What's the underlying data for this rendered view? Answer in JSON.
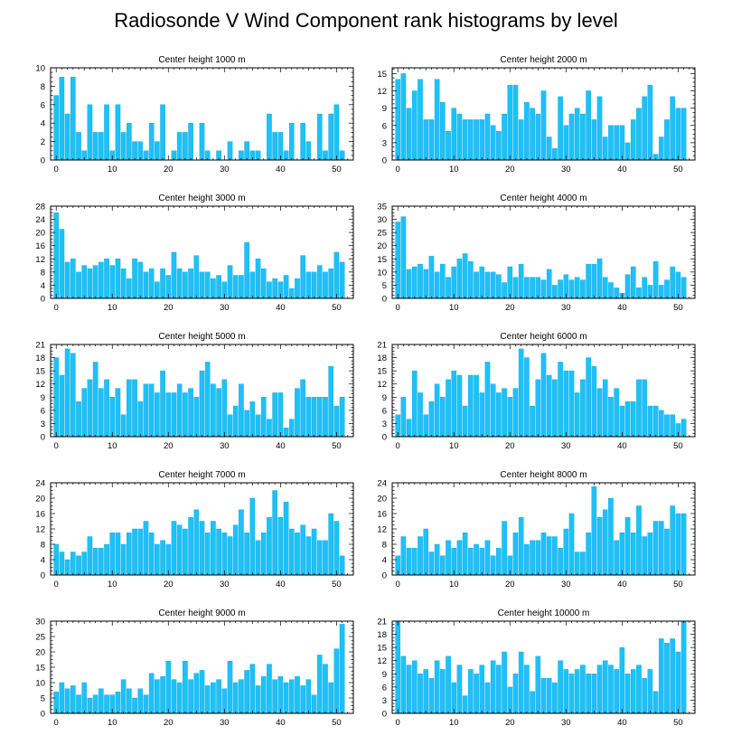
{
  "title": "Radiosonde V Wind Component rank histograms by level",
  "colors": {
    "bar": "#1ec1f7",
    "bar_edge": "#0aa6dc",
    "axis": "#000000"
  },
  "chart_data": [
    {
      "type": "bar",
      "title": "Center height 1000 m",
      "xlim": [
        -1,
        53
      ],
      "ylim": [
        0,
        10
      ],
      "xticks": [
        0,
        10,
        20,
        30,
        40,
        50
      ],
      "yticks": [
        0,
        2,
        4,
        6,
        8,
        10
      ],
      "values": [
        7,
        9,
        5,
        9,
        3,
        1,
        6,
        3,
        3,
        6,
        1,
        6,
        3,
        4,
        2,
        2,
        1,
        4,
        2,
        6,
        0,
        1,
        3,
        3,
        4,
        0,
        4,
        1,
        0,
        1,
        0,
        2,
        0,
        1,
        2,
        1,
        1,
        0,
        5,
        3,
        3,
        1,
        4,
        0,
        4,
        2,
        0,
        5,
        1,
        5,
        6,
        1
      ]
    },
    {
      "type": "bar",
      "title": "Center height 2000 m",
      "xlim": [
        -1,
        53
      ],
      "ylim": [
        0,
        16
      ],
      "xticks": [
        0,
        10,
        20,
        30,
        40,
        50
      ],
      "yticks": [
        0,
        3,
        6,
        9,
        12,
        15
      ],
      "values": [
        14,
        15,
        9,
        12,
        14,
        7,
        7,
        14,
        10,
        5,
        9,
        8,
        7,
        7,
        7,
        7,
        8,
        6,
        5,
        8,
        13,
        13,
        7,
        10,
        9,
        8,
        12,
        4,
        2,
        11,
        6,
        8,
        9,
        8,
        12,
        7,
        11,
        4,
        6,
        6,
        6,
        3,
        7,
        9,
        11,
        13,
        1,
        4,
        7,
        11,
        9,
        9
      ]
    },
    {
      "type": "bar",
      "title": "Center height 3000 m",
      "xlim": [
        -1,
        53
      ],
      "ylim": [
        0,
        28
      ],
      "xticks": [
        0,
        10,
        20,
        30,
        40,
        50
      ],
      "yticks": [
        0,
        4,
        8,
        12,
        16,
        20,
        24,
        28
      ],
      "values": [
        26,
        21,
        11,
        12,
        8,
        10,
        9,
        10,
        11,
        12,
        10,
        12,
        9,
        6,
        12,
        11,
        8,
        9,
        5,
        9,
        7,
        14,
        9,
        8,
        9,
        13,
        8,
        8,
        6,
        7,
        5,
        10,
        7,
        7,
        17,
        8,
        12,
        9,
        5,
        6,
        5,
        7,
        3,
        6,
        13,
        8,
        8,
        10,
        8,
        9,
        14,
        11
      ]
    },
    {
      "type": "bar",
      "title": "Center height 4000 m",
      "xlim": [
        -1,
        53
      ],
      "ylim": [
        0,
        35
      ],
      "xticks": [
        0,
        10,
        20,
        30,
        40,
        50
      ],
      "yticks": [
        0,
        5,
        10,
        15,
        20,
        25,
        30,
        35
      ],
      "values": [
        29,
        31,
        11,
        12,
        13,
        11,
        16,
        10,
        13,
        8,
        12,
        15,
        17,
        14,
        10,
        12,
        10,
        10,
        9,
        6,
        12,
        8,
        13,
        8,
        8,
        8,
        7,
        11,
        5,
        7,
        9,
        7,
        8,
        7,
        13,
        13,
        15,
        8,
        6,
        4,
        2,
        9,
        12,
        4,
        8,
        5,
        14,
        5,
        7,
        12,
        10,
        8
      ]
    },
    {
      "type": "bar",
      "title": "Center height 5000 m",
      "xlim": [
        -1,
        53
      ],
      "ylim": [
        0,
        21
      ],
      "xticks": [
        0,
        10,
        20,
        30,
        40,
        50
      ],
      "yticks": [
        0,
        3,
        6,
        9,
        12,
        15,
        18,
        21
      ],
      "values": [
        18,
        14,
        20,
        19,
        8,
        11,
        13,
        17,
        11,
        13,
        9,
        11,
        5,
        13,
        13,
        8,
        12,
        12,
        10,
        15,
        10,
        10,
        12,
        10,
        11,
        9,
        15,
        17,
        12,
        11,
        13,
        5,
        7,
        12,
        6,
        8,
        5,
        9,
        4,
        10,
        10,
        2,
        4,
        11,
        13,
        9,
        9,
        9,
        9,
        16,
        7,
        9
      ]
    },
    {
      "type": "bar",
      "title": "Center height 6000 m",
      "xlim": [
        -1,
        53
      ],
      "ylim": [
        0,
        21
      ],
      "xticks": [
        0,
        10,
        20,
        30,
        40,
        50
      ],
      "yticks": [
        0,
        3,
        6,
        9,
        12,
        15,
        18,
        21
      ],
      "values": [
        5,
        9,
        4,
        15,
        10,
        5,
        8,
        12,
        9,
        13,
        15,
        14,
        7,
        14,
        14,
        10,
        17,
        12,
        10,
        11,
        9,
        11,
        20,
        18,
        7,
        13,
        19,
        14,
        13,
        17,
        15,
        15,
        10,
        13,
        18,
        16,
        11,
        13,
        9,
        11,
        7,
        8,
        8,
        13,
        13,
        7,
        7,
        6,
        5,
        5,
        3,
        4
      ]
    },
    {
      "type": "bar",
      "title": "Center height 7000 m",
      "xlim": [
        -1,
        53
      ],
      "ylim": [
        0,
        24
      ],
      "xticks": [
        0,
        10,
        20,
        30,
        40,
        50
      ],
      "yticks": [
        0,
        4,
        8,
        12,
        16,
        20,
        24
      ],
      "values": [
        8,
        6,
        4,
        6,
        5,
        6,
        10,
        7,
        7,
        8,
        11,
        11,
        8,
        11,
        12,
        12,
        14,
        11,
        8,
        9,
        8,
        14,
        13,
        12,
        15,
        17,
        14,
        11,
        14,
        12,
        11,
        10,
        13,
        17,
        11,
        20,
        9,
        11,
        15,
        22,
        15,
        19,
        12,
        11,
        13,
        10,
        12,
        9,
        9,
        16,
        14,
        5
      ]
    },
    {
      "type": "bar",
      "title": "Center height 8000 m",
      "xlim": [
        -1,
        53
      ],
      "ylim": [
        0,
        24
      ],
      "xticks": [
        0,
        10,
        20,
        30,
        40,
        50
      ],
      "yticks": [
        0,
        4,
        8,
        12,
        16,
        20,
        24
      ],
      "values": [
        5,
        10,
        7,
        7,
        10,
        12,
        6,
        8,
        5,
        9,
        7,
        9,
        11,
        7,
        8,
        7,
        9,
        5,
        7,
        14,
        5,
        11,
        15,
        8,
        9,
        9,
        11,
        10,
        10,
        7,
        12,
        16,
        6,
        6,
        11,
        23,
        15,
        17,
        20,
        9,
        11,
        15,
        11,
        18,
        10,
        11,
        14,
        14,
        12,
        18,
        16,
        16
      ]
    },
    {
      "type": "bar",
      "title": "Center height 9000 m",
      "xlim": [
        -1,
        53
      ],
      "ylim": [
        0,
        30
      ],
      "xticks": [
        0,
        10,
        20,
        30,
        40,
        50
      ],
      "yticks": [
        0,
        5,
        10,
        15,
        20,
        25,
        30
      ],
      "values": [
        7,
        10,
        8,
        9,
        6,
        10,
        5,
        6,
        8,
        6,
        6,
        7,
        11,
        8,
        5,
        8,
        6,
        13,
        11,
        12,
        17,
        11,
        10,
        17,
        11,
        13,
        14,
        9,
        10,
        11,
        8,
        17,
        10,
        11,
        14,
        16,
        9,
        12,
        16,
        11,
        12,
        10,
        11,
        12,
        9,
        11,
        6,
        19,
        16,
        10,
        21,
        29
      ]
    },
    {
      "type": "bar",
      "title": "Center height 10000 m",
      "xlim": [
        -1,
        53
      ],
      "ylim": [
        0,
        21
      ],
      "xticks": [
        0,
        10,
        20,
        30,
        40,
        50
      ],
      "yticks": [
        0,
        3,
        6,
        9,
        12,
        15,
        18,
        21
      ],
      "values": [
        21,
        13,
        11,
        12,
        9,
        10,
        8,
        12,
        10,
        13,
        7,
        11,
        4,
        10,
        9,
        11,
        7,
        12,
        11,
        14,
        6,
        9,
        14,
        11,
        5,
        13,
        8,
        8,
        7,
        12,
        10,
        9,
        10,
        11,
        9,
        9,
        11,
        12,
        11,
        10,
        15,
        9,
        10,
        11,
        8,
        10,
        5,
        17,
        16,
        17,
        14,
        21
      ]
    }
  ]
}
